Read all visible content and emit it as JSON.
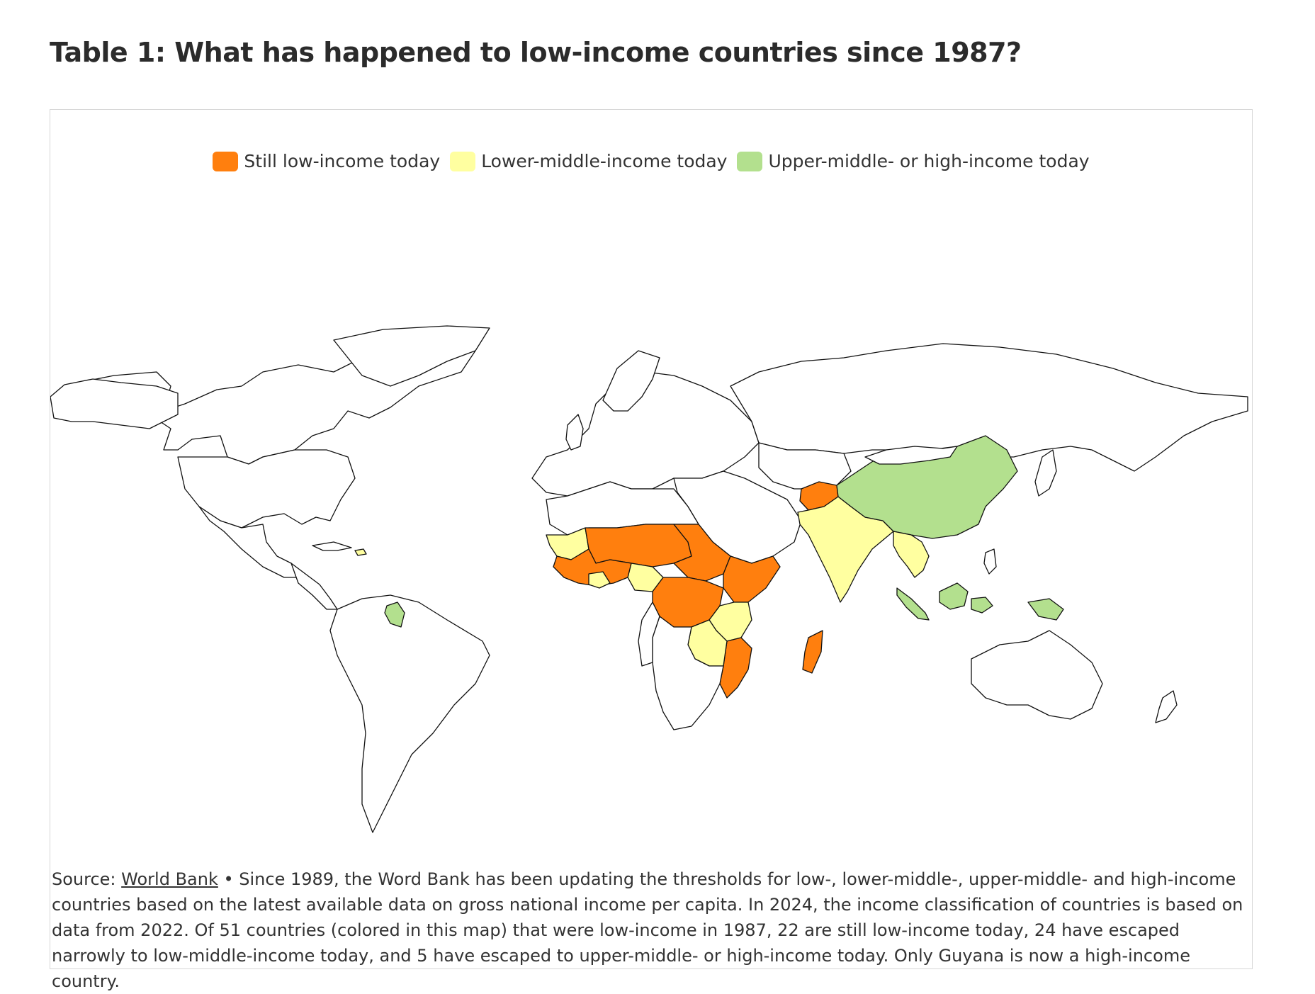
{
  "title": "Table 1: What has happened to low-income countries since 1987?",
  "legend": [
    {
      "label": "Still low-income today",
      "color": "#ff7f0e"
    },
    {
      "label": "Lower-middle-income today",
      "color": "#ffffa0"
    },
    {
      "label": "Upper-middle- or high-income today",
      "color": "#b3e08e"
    }
  ],
  "caption": {
    "source_prefix": "Source: ",
    "source_link": "World Bank",
    "text": " • Since 1989, the Word Bank has been updating the thresholds for low-, lower-middle-, upper-middle- and high-income countries based on the latest available data on gross national income per capita. In 2024, the income classification of countries is based on data from 2022. Of 51 countries (colored in this map) that were low-income in 1987, 22 are still low-income today, 24 have escaped narrowly to low-middle-income today, and 5 have escaped to upper-middle- or high-income today. Only Guyana is now a high-income country."
  },
  "map": {
    "colors": {
      "still_low": "#ff7f0e",
      "lower_middle": "#ffffa0",
      "upper_or_high": "#b3e08e",
      "other": "#ffffff",
      "border": "#111111"
    }
  }
}
